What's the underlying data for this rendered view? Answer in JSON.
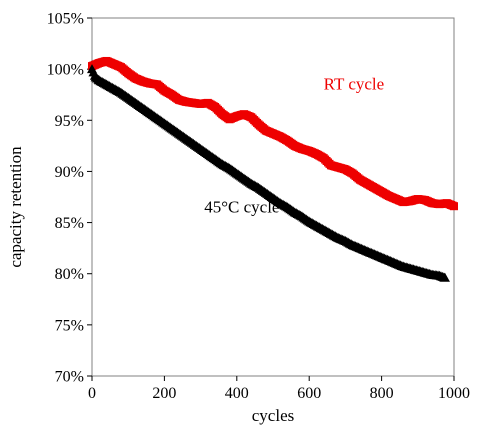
{
  "chart_data": {
    "type": "scatter",
    "title": "",
    "xlabel": "cycles",
    "ylabel": "capacity retention",
    "xlim": [
      0,
      1000
    ],
    "ylim": [
      70,
      105
    ],
    "x_ticks": [
      0,
      200,
      400,
      600,
      800,
      1000
    ],
    "y_ticks": [
      70,
      75,
      80,
      85,
      90,
      95,
      100,
      105
    ],
    "y_tick_labels": [
      "70%",
      "75%",
      "80%",
      "85%",
      "90%",
      "95%",
      "100%",
      "105%"
    ],
    "grid": false,
    "legend": "none",
    "series": [
      {
        "name": "RT cycle",
        "color": "#ee0000",
        "marker": "square",
        "points": [
          [
            0,
            100.3
          ],
          [
            20,
            100.6
          ],
          [
            40,
            100.8
          ],
          [
            60,
            100.5
          ],
          [
            80,
            100.2
          ],
          [
            100,
            99.6
          ],
          [
            120,
            99.1
          ],
          [
            140,
            98.8
          ],
          [
            160,
            98.6
          ],
          [
            180,
            98.5
          ],
          [
            200,
            97.9
          ],
          [
            220,
            97.5
          ],
          [
            240,
            97.0
          ],
          [
            260,
            96.8
          ],
          [
            280,
            96.7
          ],
          [
            300,
            96.6
          ],
          [
            320,
            96.7
          ],
          [
            340,
            96.3
          ],
          [
            360,
            95.6
          ],
          [
            380,
            95.1
          ],
          [
            400,
            95.4
          ],
          [
            420,
            95.6
          ],
          [
            440,
            95.3
          ],
          [
            460,
            94.6
          ],
          [
            480,
            94.0
          ],
          [
            500,
            93.7
          ],
          [
            520,
            93.4
          ],
          [
            540,
            93.0
          ],
          [
            560,
            92.5
          ],
          [
            580,
            92.2
          ],
          [
            600,
            92.0
          ],
          [
            620,
            91.7
          ],
          [
            640,
            91.3
          ],
          [
            660,
            90.6
          ],
          [
            680,
            90.4
          ],
          [
            700,
            90.2
          ],
          [
            720,
            89.8
          ],
          [
            740,
            89.2
          ],
          [
            760,
            88.8
          ],
          [
            780,
            88.4
          ],
          [
            800,
            88.0
          ],
          [
            820,
            87.6
          ],
          [
            840,
            87.3
          ],
          [
            860,
            87.0
          ],
          [
            880,
            87.1
          ],
          [
            900,
            87.3
          ],
          [
            920,
            87.2
          ],
          [
            940,
            86.9
          ],
          [
            960,
            86.8
          ],
          [
            980,
            86.9
          ],
          [
            1000,
            86.6
          ]
        ]
      },
      {
        "name": "45°C cycle",
        "color": "#000000",
        "marker": "triangle",
        "points": [
          [
            0,
            100.0
          ],
          [
            10,
            99.2
          ],
          [
            20,
            98.9
          ],
          [
            40,
            98.5
          ],
          [
            60,
            98.1
          ],
          [
            80,
            97.7
          ],
          [
            100,
            97.2
          ],
          [
            120,
            96.7
          ],
          [
            140,
            96.2
          ],
          [
            160,
            95.7
          ],
          [
            180,
            95.2
          ],
          [
            200,
            94.7
          ],
          [
            220,
            94.2
          ],
          [
            240,
            93.7
          ],
          [
            260,
            93.2
          ],
          [
            280,
            92.7
          ],
          [
            300,
            92.2
          ],
          [
            320,
            91.7
          ],
          [
            340,
            91.2
          ],
          [
            360,
            90.7
          ],
          [
            380,
            90.3
          ],
          [
            400,
            89.8
          ],
          [
            420,
            89.3
          ],
          [
            440,
            88.8
          ],
          [
            460,
            88.4
          ],
          [
            480,
            87.9
          ],
          [
            500,
            87.4
          ],
          [
            520,
            86.9
          ],
          [
            540,
            86.5
          ],
          [
            560,
            86.0
          ],
          [
            580,
            85.6
          ],
          [
            600,
            85.1
          ],
          [
            620,
            84.7
          ],
          [
            640,
            84.3
          ],
          [
            660,
            83.9
          ],
          [
            680,
            83.5
          ],
          [
            700,
            83.2
          ],
          [
            720,
            82.8
          ],
          [
            740,
            82.5
          ],
          [
            760,
            82.2
          ],
          [
            780,
            81.9
          ],
          [
            800,
            81.6
          ],
          [
            820,
            81.3
          ],
          [
            840,
            81.0
          ],
          [
            860,
            80.7
          ],
          [
            880,
            80.5
          ],
          [
            900,
            80.3
          ],
          [
            920,
            80.1
          ],
          [
            940,
            79.9
          ],
          [
            960,
            79.8
          ],
          [
            975,
            79.6
          ]
        ]
      }
    ],
    "annotations": [
      {
        "text": "RT cycle",
        "color": "#ee0000",
        "x": 640,
        "y": 98.0
      },
      {
        "text": "45°C cycle",
        "color": "#000000",
        "x": 310,
        "y": 86.0
      }
    ]
  }
}
